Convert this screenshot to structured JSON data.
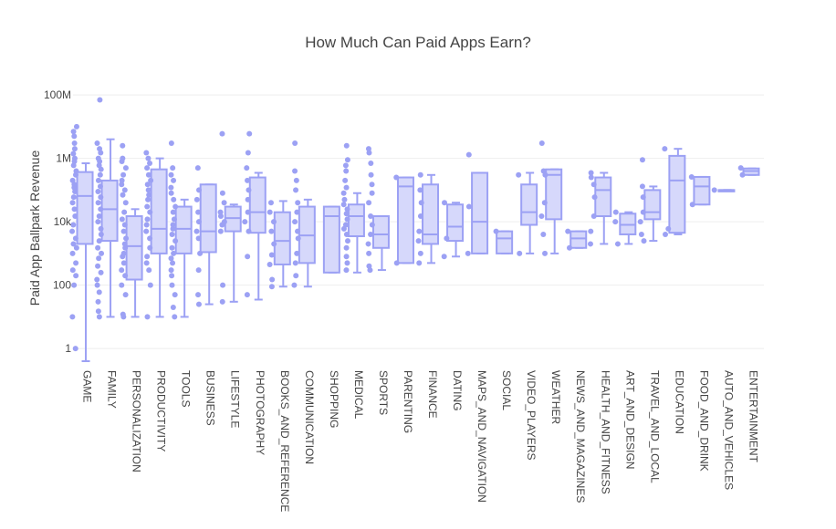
{
  "chart_data": {
    "type": "box",
    "title": "How Much Can Paid Apps Earn?",
    "ylabel": "Paid App Ballpark Revenue",
    "yscale": "log",
    "ylim": [
      0.4,
      150000000
    ],
    "y_ticks": [
      {
        "value": 1,
        "label": "1"
      },
      {
        "value": 100,
        "label": "100"
      },
      {
        "value": 10000,
        "label": "10k"
      },
      {
        "value": 1000000,
        "label": "1M"
      },
      {
        "value": 100000000,
        "label": "100M"
      }
    ],
    "color": "#9ca1f4",
    "fill": "#d6d8fb",
    "grid": true,
    "series": [
      {
        "category": "GAME",
        "q1": 2000,
        "median": 65000,
        "q3": 370000,
        "lower": 0.3,
        "upper": 700000,
        "outliers": [
          1,
          10,
          100,
          200,
          300,
          500,
          1000,
          1500,
          2000,
          3000,
          5000,
          8000,
          15000,
          25000,
          40000,
          60000,
          90000,
          120000,
          150000,
          200000,
          300000,
          400000,
          600000,
          800000,
          1000000,
          1400000,
          2000000,
          3000000,
          5000000,
          7000000,
          10000000
        ]
      },
      {
        "category": "FAMILY",
        "q1": 2500,
        "median": 25000,
        "q3": 200000,
        "lower": 10,
        "upper": 4000000,
        "outliers": [
          10,
          15,
          30,
          60,
          100,
          150,
          250,
          400,
          700,
          1000,
          1500,
          2500,
          4000,
          6000,
          10000,
          15000,
          25000,
          40000,
          60000,
          90000,
          130000,
          200000,
          300000,
          450000,
          600000,
          800000,
          1000000,
          1500000,
          2000000,
          3000000,
          70000000
        ]
      },
      {
        "category": "PERSONALIZATION",
        "q1": 150,
        "median": 1700,
        "q3": 15000,
        "lower": 10,
        "upper": 25000,
        "outliers": [
          10,
          12,
          50,
          100,
          200,
          300,
          500,
          800,
          1000,
          1500,
          2000,
          3000,
          5000,
          8000,
          12000,
          20000,
          40000,
          70000,
          100000,
          150000,
          200000,
          300000,
          500000,
          800000,
          1000000,
          2500000
        ]
      },
      {
        "category": "PRODUCTIVITY",
        "q1": 1000,
        "median": 6000,
        "q3": 450000,
        "lower": 10,
        "upper": 1000000,
        "outliers": [
          10,
          100,
          300,
          500,
          800,
          1500,
          3000,
          5000,
          8000,
          12000,
          20000,
          30000,
          50000,
          70000,
          100000,
          150000,
          200000,
          300000,
          500000,
          700000,
          1000000,
          1500000
        ]
      },
      {
        "category": "TOOLS",
        "q1": 1000,
        "median": 6000,
        "q3": 30000,
        "lower": 10,
        "upper": 50000,
        "outliers": [
          10,
          20,
          50,
          100,
          200,
          300,
          500,
          700,
          1000,
          1500,
          2500,
          4000,
          6000,
          8000,
          12000,
          20000,
          30000,
          50000,
          80000,
          120000,
          200000,
          300000,
          500000,
          3000000
        ]
      },
      {
        "category": "BUSINESS",
        "q1": 1100,
        "median": 5000,
        "q3": 150000,
        "lower": 25,
        "upper": 150000,
        "outliers": [
          25,
          50,
          300,
          1000,
          3000,
          5000,
          10000,
          20000,
          50000,
          100000,
          500000
        ]
      },
      {
        "category": "LIFESTYLE",
        "q1": 5000,
        "median": 13000,
        "q3": 30000,
        "lower": 30,
        "upper": 35000,
        "outliers": [
          30,
          100,
          5000,
          8000,
          10000,
          15000,
          20000,
          40000,
          80000,
          6000000
        ]
      },
      {
        "category": "PHOTOGRAPHY",
        "q1": 4500,
        "median": 20000,
        "q3": 250000,
        "lower": 35,
        "upper": 350000,
        "outliers": [
          50,
          800,
          5000,
          10000,
          20000,
          50000,
          100000,
          200000,
          500000,
          1500000,
          6000000
        ]
      },
      {
        "category": "BOOKS_AND_REFERENCE",
        "q1": 450,
        "median": 2500,
        "q3": 20000,
        "lower": 90,
        "upper": 45000,
        "outliers": [
          90,
          150,
          450,
          900,
          2000,
          5000,
          10000,
          20000,
          40000
        ]
      },
      {
        "category": "COMMUNICATION",
        "q1": 500,
        "median": 3700,
        "q3": 30000,
        "lower": 90,
        "upper": 50000,
        "outliers": [
          100,
          200,
          500,
          1000,
          3000,
          5000,
          10000,
          20000,
          40000,
          100000,
          200000,
          400000,
          3000000
        ]
      },
      {
        "category": "SHOPPING",
        "q1": 250,
        "median": 15000,
        "q3": 30000,
        "lower": 250,
        "upper": 30000,
        "outliers": []
      },
      {
        "category": "MEDICAL",
        "q1": 3500,
        "median": 15000,
        "q3": 35000,
        "lower": 250,
        "upper": 80000,
        "outliers": [
          300,
          500,
          800,
          1500,
          2500,
          4000,
          6000,
          8000,
          12000,
          18000,
          25000,
          35000,
          50000,
          80000,
          120000,
          200000,
          400000,
          600000,
          900000,
          2500000
        ]
      },
      {
        "category": "SPORTS",
        "q1": 1500,
        "median": 4000,
        "q3": 15000,
        "lower": 300,
        "upper": 15000,
        "outliers": [
          300,
          400,
          1000,
          2000,
          4000,
          8000,
          15000,
          40000,
          80000,
          150000,
          300000,
          700000,
          1500000,
          2000000
        ]
      },
      {
        "category": "PARENTING",
        "q1": 500,
        "median": 130000,
        "q3": 250000,
        "lower": 500,
        "upper": 250000,
        "outliers": [
          500,
          250000
        ]
      },
      {
        "category": "FINANCE",
        "q1": 2000,
        "median": 4000,
        "q3": 150000,
        "lower": 500,
        "upper": 300000,
        "outliers": [
          500,
          1000,
          2500,
          5000,
          15000,
          40000,
          100000,
          300000
        ]
      },
      {
        "category": "DATING",
        "q1": 2500,
        "median": 7000,
        "q3": 35000,
        "lower": 800,
        "upper": 40000,
        "outliers": [
          800,
          3000,
          40000
        ]
      },
      {
        "category": "MAPS_AND_NAVIGATION",
        "q1": 1000,
        "median": 10000,
        "q3": 350000,
        "lower": 1000,
        "upper": 350000,
        "outliers": [
          1000,
          30000,
          1300000
        ]
      },
      {
        "category": "SOCIAL",
        "q1": 1000,
        "median": 3000,
        "q3": 5000,
        "lower": 1000,
        "upper": 5000,
        "outliers": [
          5000
        ]
      },
      {
        "category": "VIDEO_PLAYERS",
        "q1": 8000,
        "median": 20000,
        "q3": 150000,
        "lower": 1000,
        "upper": 350000,
        "outliers": [
          1000,
          300000
        ]
      },
      {
        "category": "WEATHER",
        "q1": 12000,
        "median": 300000,
        "q3": 450000,
        "lower": 1000,
        "upper": 450000,
        "outliers": [
          1000,
          4000,
          15000,
          40000,
          300000,
          400000,
          3000000
        ]
      },
      {
        "category": "NEWS_AND_MAGAZINES",
        "q1": 1500,
        "median": 3000,
        "q3": 5000,
        "lower": 1500,
        "upper": 5000,
        "outliers": [
          1500,
          5000
        ]
      },
      {
        "category": "HEALTH_AND_FITNESS",
        "q1": 15000,
        "median": 100000,
        "q3": 250000,
        "lower": 2000,
        "upper": 350000,
        "outliers": [
          2000,
          5000,
          15000,
          60000,
          150000,
          250000,
          350000
        ]
      },
      {
        "category": "ART_AND_DESIGN",
        "q1": 4000,
        "median": 8000,
        "q3": 18000,
        "lower": 2000,
        "upper": 20000,
        "outliers": [
          2000,
          10000,
          20000
        ]
      },
      {
        "category": "TRAVEL_AND_LOCAL",
        "q1": 12000,
        "median": 20000,
        "q3": 100000,
        "lower": 2500,
        "upper": 130000,
        "outliers": [
          2500,
          4000,
          10000,
          20000,
          60000,
          130000,
          900000
        ]
      },
      {
        "category": "EDUCATION",
        "q1": 4500,
        "median": 200000,
        "q3": 1200000,
        "lower": 4000,
        "upper": 2000000,
        "outliers": [
          4000,
          6000,
          2000000
        ]
      },
      {
        "category": "FOOD_AND_DRINK",
        "q1": 35000,
        "median": 130000,
        "q3": 260000,
        "lower": 35000,
        "upper": 260000,
        "outliers": [
          35000,
          260000
        ]
      },
      {
        "category": "AUTO_AND_VEHICLES",
        "q1": 100000,
        "median": 100000,
        "q3": 100000,
        "lower": 100000,
        "upper": 100000,
        "outliers": [
          100000
        ]
      },
      {
        "category": "ENTERTAINMENT",
        "q1": 300000,
        "median": 400000,
        "q3": 480000,
        "lower": 300000,
        "upper": 480000,
        "outliers": [
          300000,
          500000
        ]
      }
    ]
  }
}
